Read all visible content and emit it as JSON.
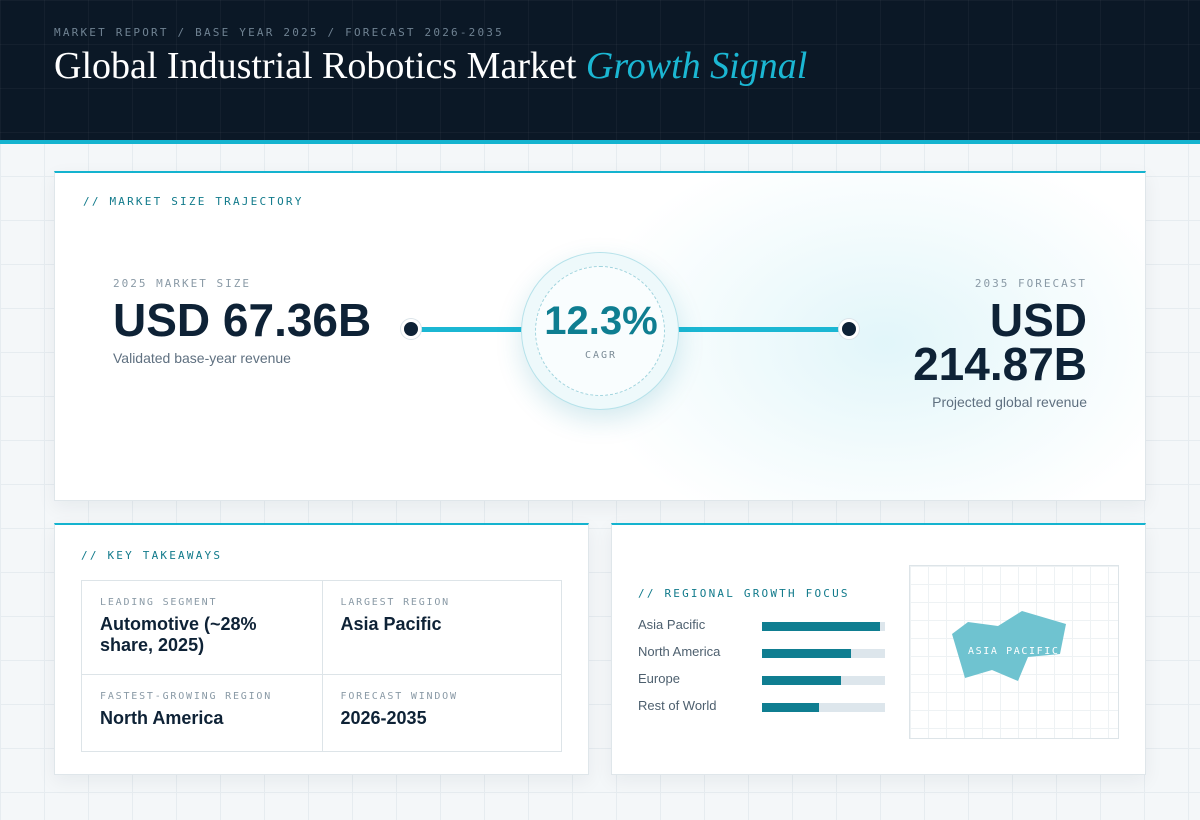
{
  "header": {
    "eyebrow": "MARKET REPORT / BASE YEAR 2025 / FORECAST 2026-2035",
    "title_main": "Global Industrial Robotics Market",
    "title_accent": "Growth Signal"
  },
  "trajectory": {
    "label": "// MARKET SIZE TRAJECTORY",
    "base": {
      "caption": "2025 MARKET SIZE",
      "value": "USD 67.36B",
      "sub": "Validated base-year revenue"
    },
    "forecast": {
      "caption": "2035 FORECAST",
      "value_line1": "USD",
      "value_line2": "214.87B",
      "sub": "Projected global revenue"
    },
    "cagr": {
      "value": "12.3%",
      "label": "CAGR"
    }
  },
  "takeaways": {
    "label": "// KEY TAKEAWAYS",
    "items": [
      {
        "label": "LEADING SEGMENT",
        "value": "Automotive (~28% share, 2025)"
      },
      {
        "label": "LARGEST REGION",
        "value": "Asia Pacific"
      },
      {
        "label": "FASTEST-GROWING REGION",
        "value": "North America"
      },
      {
        "label": "FORECAST WINDOW",
        "value": "2026-2035"
      }
    ]
  },
  "regional": {
    "label": "// REGIONAL GROWTH FOCUS",
    "bars": [
      {
        "name": "Asia Pacific",
        "level": 0.96
      },
      {
        "name": "North America",
        "level": 0.72
      },
      {
        "name": "Europe",
        "level": 0.64
      },
      {
        "name": "Rest of World",
        "level": 0.46
      }
    ],
    "map_label": "ASIA PACIFIC"
  },
  "colors": {
    "header_bg": "#0b1826",
    "accent": "#1bb7d3",
    "accent_dark": "#0f7e91",
    "ink": "#0e2236",
    "map_fill": "#6fc3d0"
  }
}
